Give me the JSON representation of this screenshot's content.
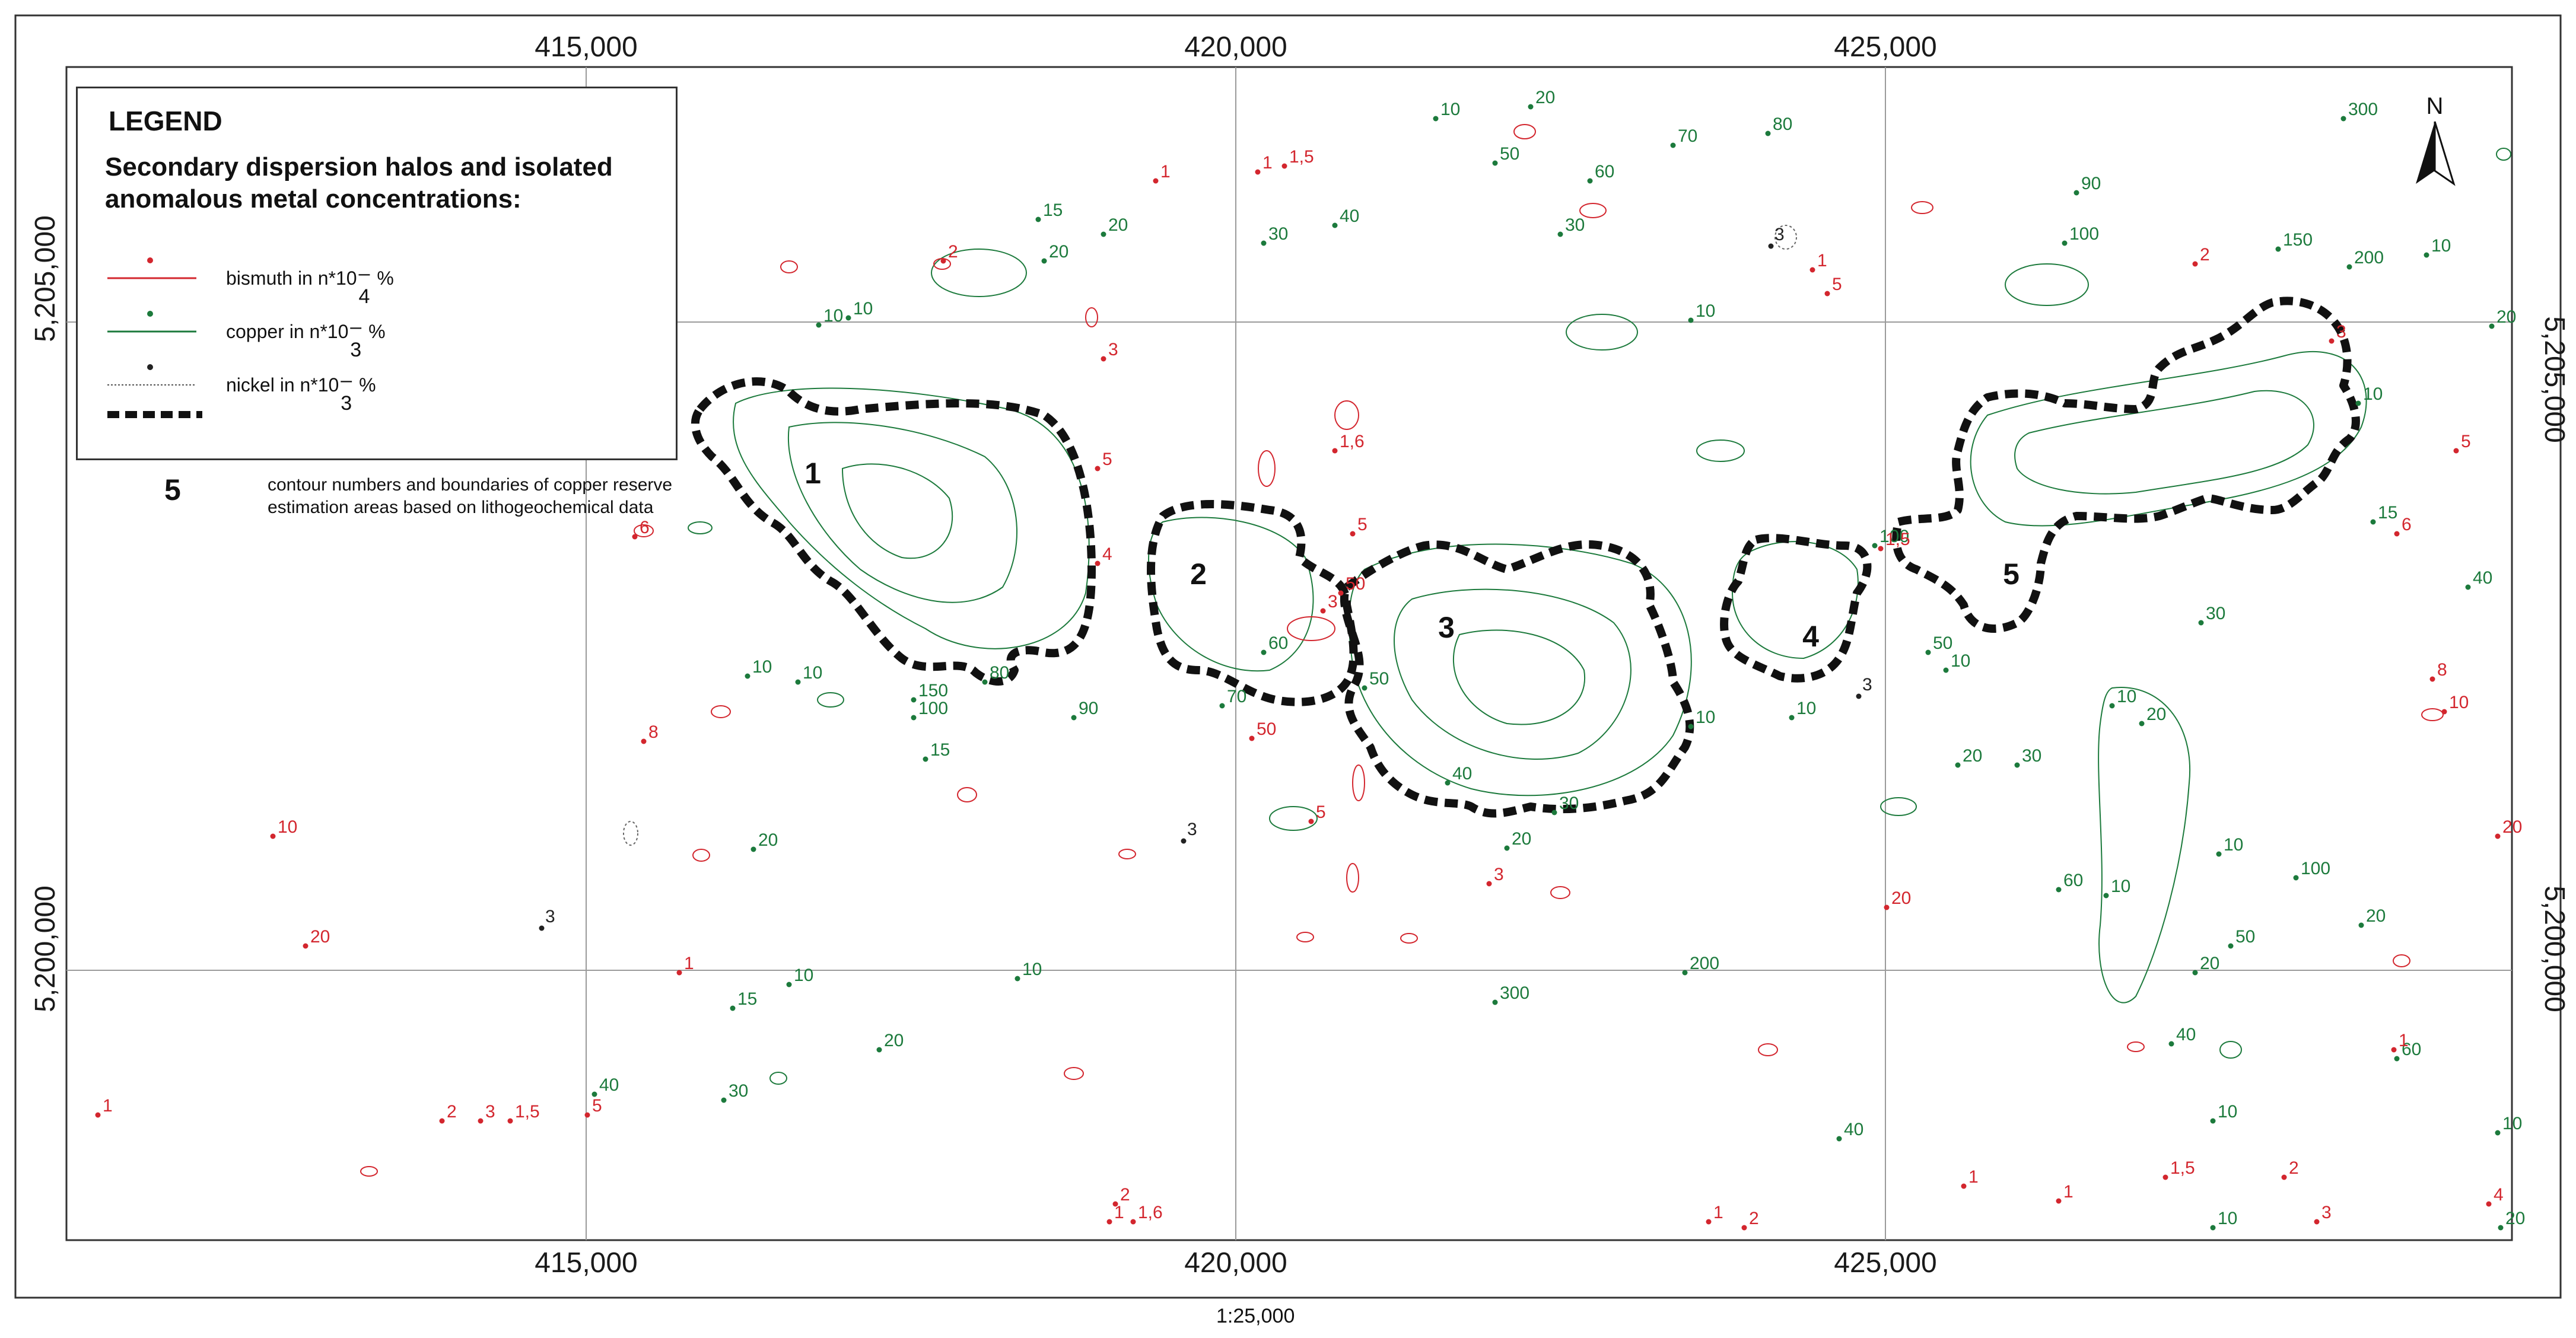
{
  "legend": {
    "title": "LEGEND",
    "subtitle_line1": "Secondary dispersion halos and isolated",
    "subtitle_line2": "anomalous metal concentrations:",
    "items": [
      {
        "label": "bismuth in n*10",
        "unit": "%",
        "exponent": "– 4",
        "color": "#d3262e"
      },
      {
        "label": "copper in n*10",
        "unit": "%",
        "exponent": "– 3",
        "color": "#1c7a3c"
      },
      {
        "label": "nickel in n*10",
        "unit": "%",
        "exponent": "– 3",
        "color": "#222222"
      }
    ],
    "boundary_number": "5",
    "boundary_text_line1": "contour numbers and boundaries of copper reserve",
    "boundary_text_line2": "estimation areas based on lithogeochemical data"
  },
  "coords": {
    "top": [
      "415,000",
      "420,000",
      "425,000"
    ],
    "bottom": [
      "415,000",
      "420,000",
      "425,000"
    ],
    "left": [
      "5,205,000",
      "5,200,000"
    ],
    "right": [
      "5,205,000",
      "5,200,000"
    ]
  },
  "north_label": "N",
  "scale": "1:25,000",
  "areas": [
    {
      "number": "1"
    },
    {
      "number": "2"
    },
    {
      "number": "3"
    },
    {
      "number": "4"
    },
    {
      "number": "5"
    }
  ],
  "colors": {
    "copper": "#1c7a3c",
    "bismuth": "#d3262e",
    "nickel": "#222222",
    "boundary": "#111111",
    "grid": "#9a9a9a"
  },
  "sample_labels": {
    "copper": [
      "10",
      "10",
      "15",
      "20",
      "20",
      "30",
      "40",
      "50",
      "60",
      "70",
      "80",
      "90",
      "100",
      "150",
      "200",
      "300",
      "10",
      "20",
      "10",
      "15",
      "40",
      "30",
      "10",
      "20",
      "10",
      "60",
      "10",
      "20",
      "40",
      "10",
      "50",
      "100",
      "10",
      "20",
      "30",
      "10"
    ],
    "bismuth": [
      "1",
      "1",
      "1,5",
      "2",
      "3",
      "4",
      "5",
      "6",
      "8",
      "10",
      "20",
      "1",
      "2",
      "3",
      "1,5",
      "1",
      "5",
      "1",
      "2",
      "1,6",
      "5",
      "50",
      "3",
      "20"
    ],
    "nickel": [
      "3",
      "3",
      "3",
      "3"
    ]
  }
}
